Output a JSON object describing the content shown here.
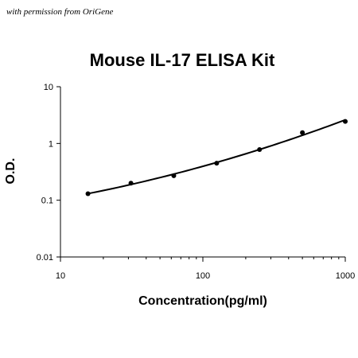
{
  "credit": "with permission from OriGene",
  "chart_data": {
    "type": "scatter",
    "title": "Mouse IL-17 ELISA Kit",
    "xlabel": "Concentration(pg/ml)",
    "ylabel": "O.D.",
    "xscale": "log",
    "yscale": "log",
    "xlim": [
      10,
      1000
    ],
    "ylim": [
      0.01,
      10
    ],
    "x_ticks": [
      10,
      100,
      1000
    ],
    "x_tick_labels": [
      "10",
      "100",
      "1000"
    ],
    "y_ticks": [
      0.01,
      0.1,
      1,
      10
    ],
    "y_tick_labels": [
      "0.01",
      "0.1",
      "1",
      "10"
    ],
    "grid": false,
    "legend": "none",
    "series": [
      {
        "x": [
          15.6,
          31.25,
          62.5,
          125,
          250,
          500,
          1000
        ],
        "y": [
          0.13,
          0.2,
          0.27,
          0.45,
          0.78,
          1.55,
          2.45
        ]
      }
    ],
    "fit_curve": "smooth"
  }
}
